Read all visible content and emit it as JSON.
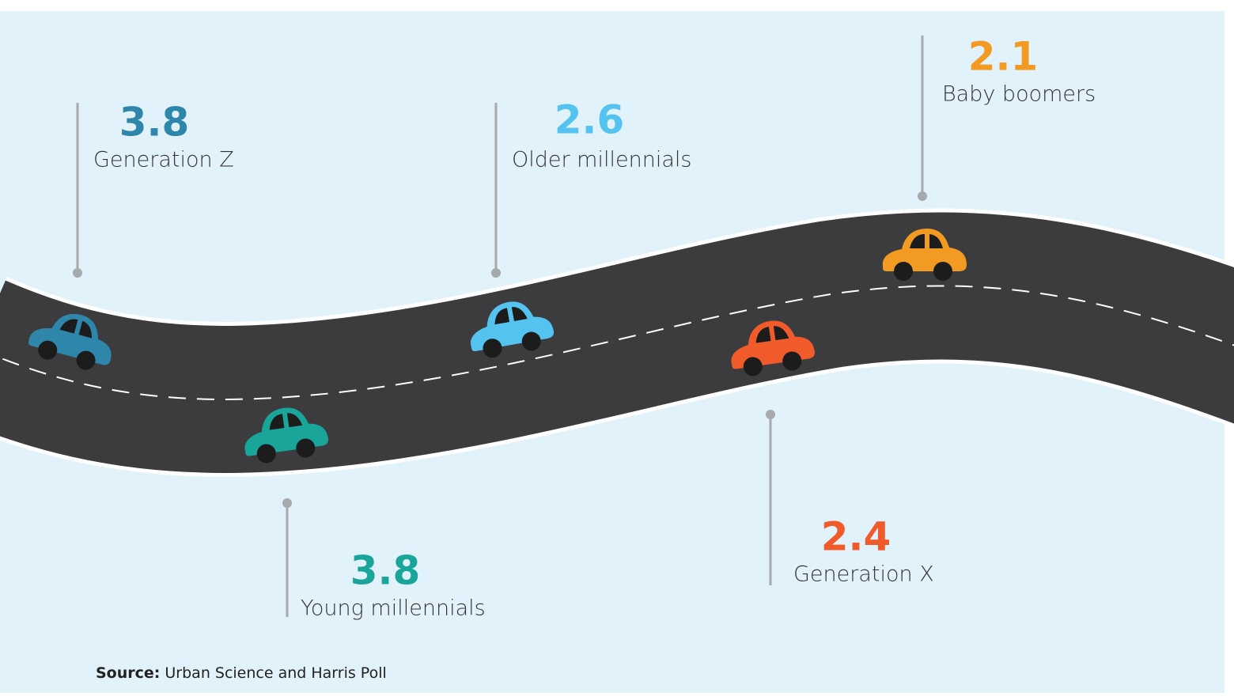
{
  "items": [
    {
      "value": 3.8,
      "label": "Generation Z",
      "color": "#2e86ab"
    },
    {
      "value": 3.8,
      "label": "Young millennials",
      "color": "#1aa59b"
    },
    {
      "value": 2.6,
      "label": "Older millennials",
      "color": "#55c3ef"
    },
    {
      "value": 2.4,
      "label": "Generation X",
      "color": "#f15a2b"
    },
    {
      "value": 2.1,
      "label": "Baby boomers",
      "color": "#f39a23"
    }
  ],
  "source": {
    "label": "Source:",
    "text": "Urban Science and Harris Poll"
  }
}
